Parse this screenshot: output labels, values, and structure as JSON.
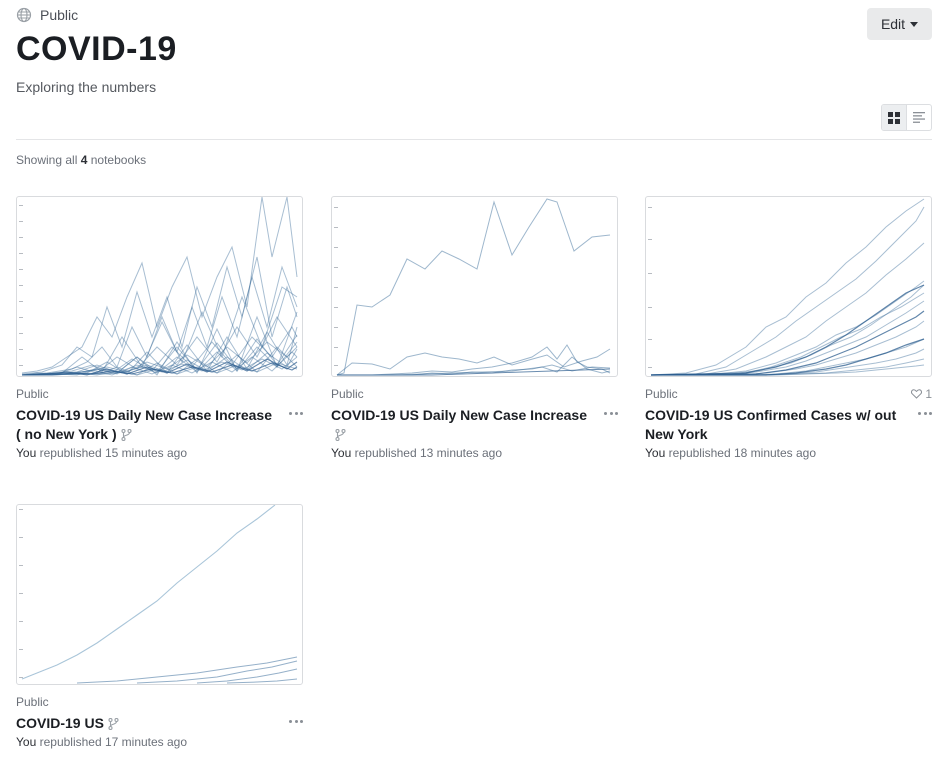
{
  "collection": {
    "visibility": "Public",
    "title": "COVID-19",
    "description": "Exploring the numbers",
    "edit_label": "Edit",
    "showing_prefix": "Showing all",
    "showing_count": "4",
    "showing_suffix": "notebooks"
  },
  "colors": {
    "line": "#3e6f9c",
    "border": "#d9dbde",
    "text": "#1b1e23",
    "muted": "#6b7079"
  },
  "icons": {
    "visibility": "globe-icon",
    "grid": "grid-view-icon",
    "list": "list-view-icon",
    "fork": "fork-icon",
    "more": "more-icon",
    "like": "heart-icon"
  },
  "notebooks": [
    {
      "visibility": "Public",
      "title": "COVID-19 US Daily New Case Increase ( no New York )",
      "owner": "You",
      "activity": "republished 15 minutes ago",
      "likes": ""
    },
    {
      "visibility": "Public",
      "title": "COVID-19 US Daily New Case Increase",
      "owner": "You",
      "activity": "republished 13 minutes ago",
      "likes": ""
    },
    {
      "visibility": "Public",
      "title": "COVID-19 US Confirmed Cases w/ out New York",
      "owner": "You",
      "activity": "republished 18 minutes ago",
      "likes": "1"
    },
    {
      "visibility": "Public",
      "title": "COVID-19 US",
      "owner": "You",
      "activity": "republished 17 minutes ago",
      "likes": ""
    }
  ]
}
